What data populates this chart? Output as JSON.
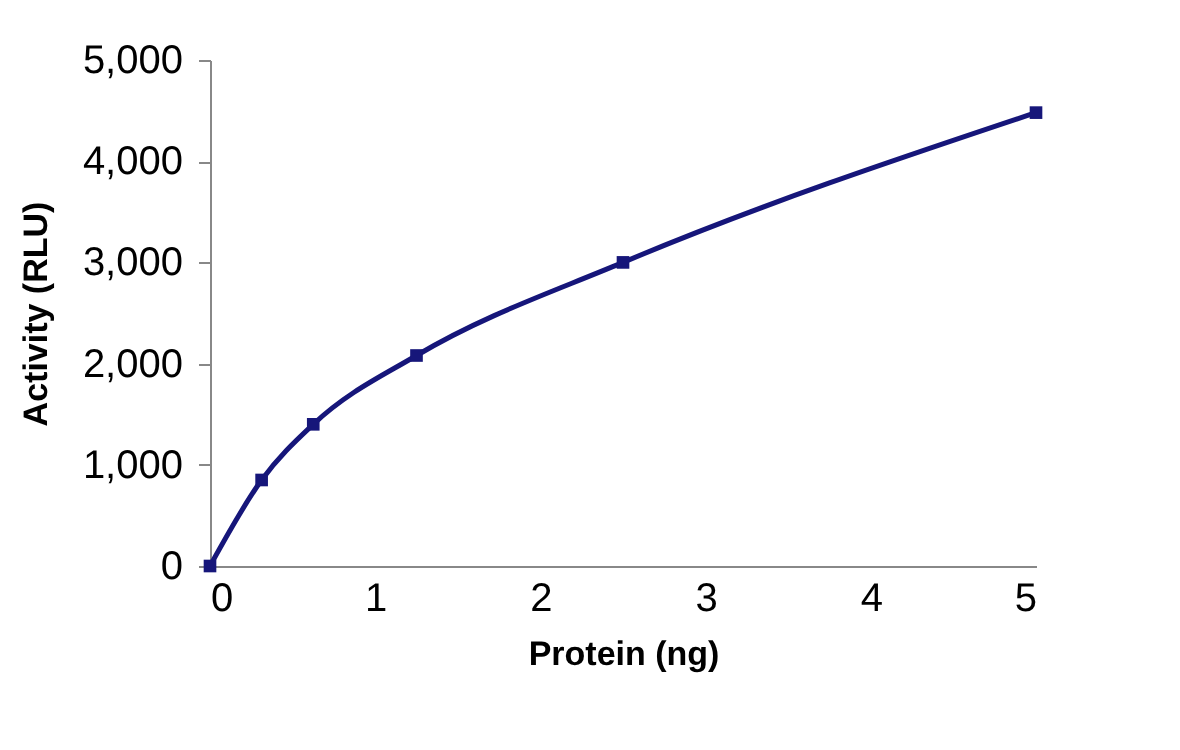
{
  "chart_data": {
    "type": "line",
    "xlabel": "Protein (ng)",
    "ylabel": "Activity (RLU)",
    "x": [
      0,
      0.3125,
      0.625,
      1.25,
      2.5,
      5
    ],
    "series": [
      {
        "color": "#16167a",
        "values": [
          0,
          850,
          1400,
          2080,
          3000,
          4480
        ]
      }
    ],
    "xlim": [
      0,
      5
    ],
    "xticks": [
      0,
      1,
      2,
      3,
      4,
      5
    ],
    "ylim": [
      0,
      5000
    ],
    "yticks": [
      0,
      {
        "value": 1000,
        "label": "1,000"
      },
      {
        "value": 2000,
        "label": "2,000"
      },
      {
        "value": 3000,
        "label": "3,000"
      },
      {
        "value": 4000,
        "label": "4,000"
      },
      {
        "value": 5000,
        "label": "5,000"
      }
    ],
    "grid": false,
    "legend": false,
    "marker": "square",
    "line_style": "solid"
  }
}
